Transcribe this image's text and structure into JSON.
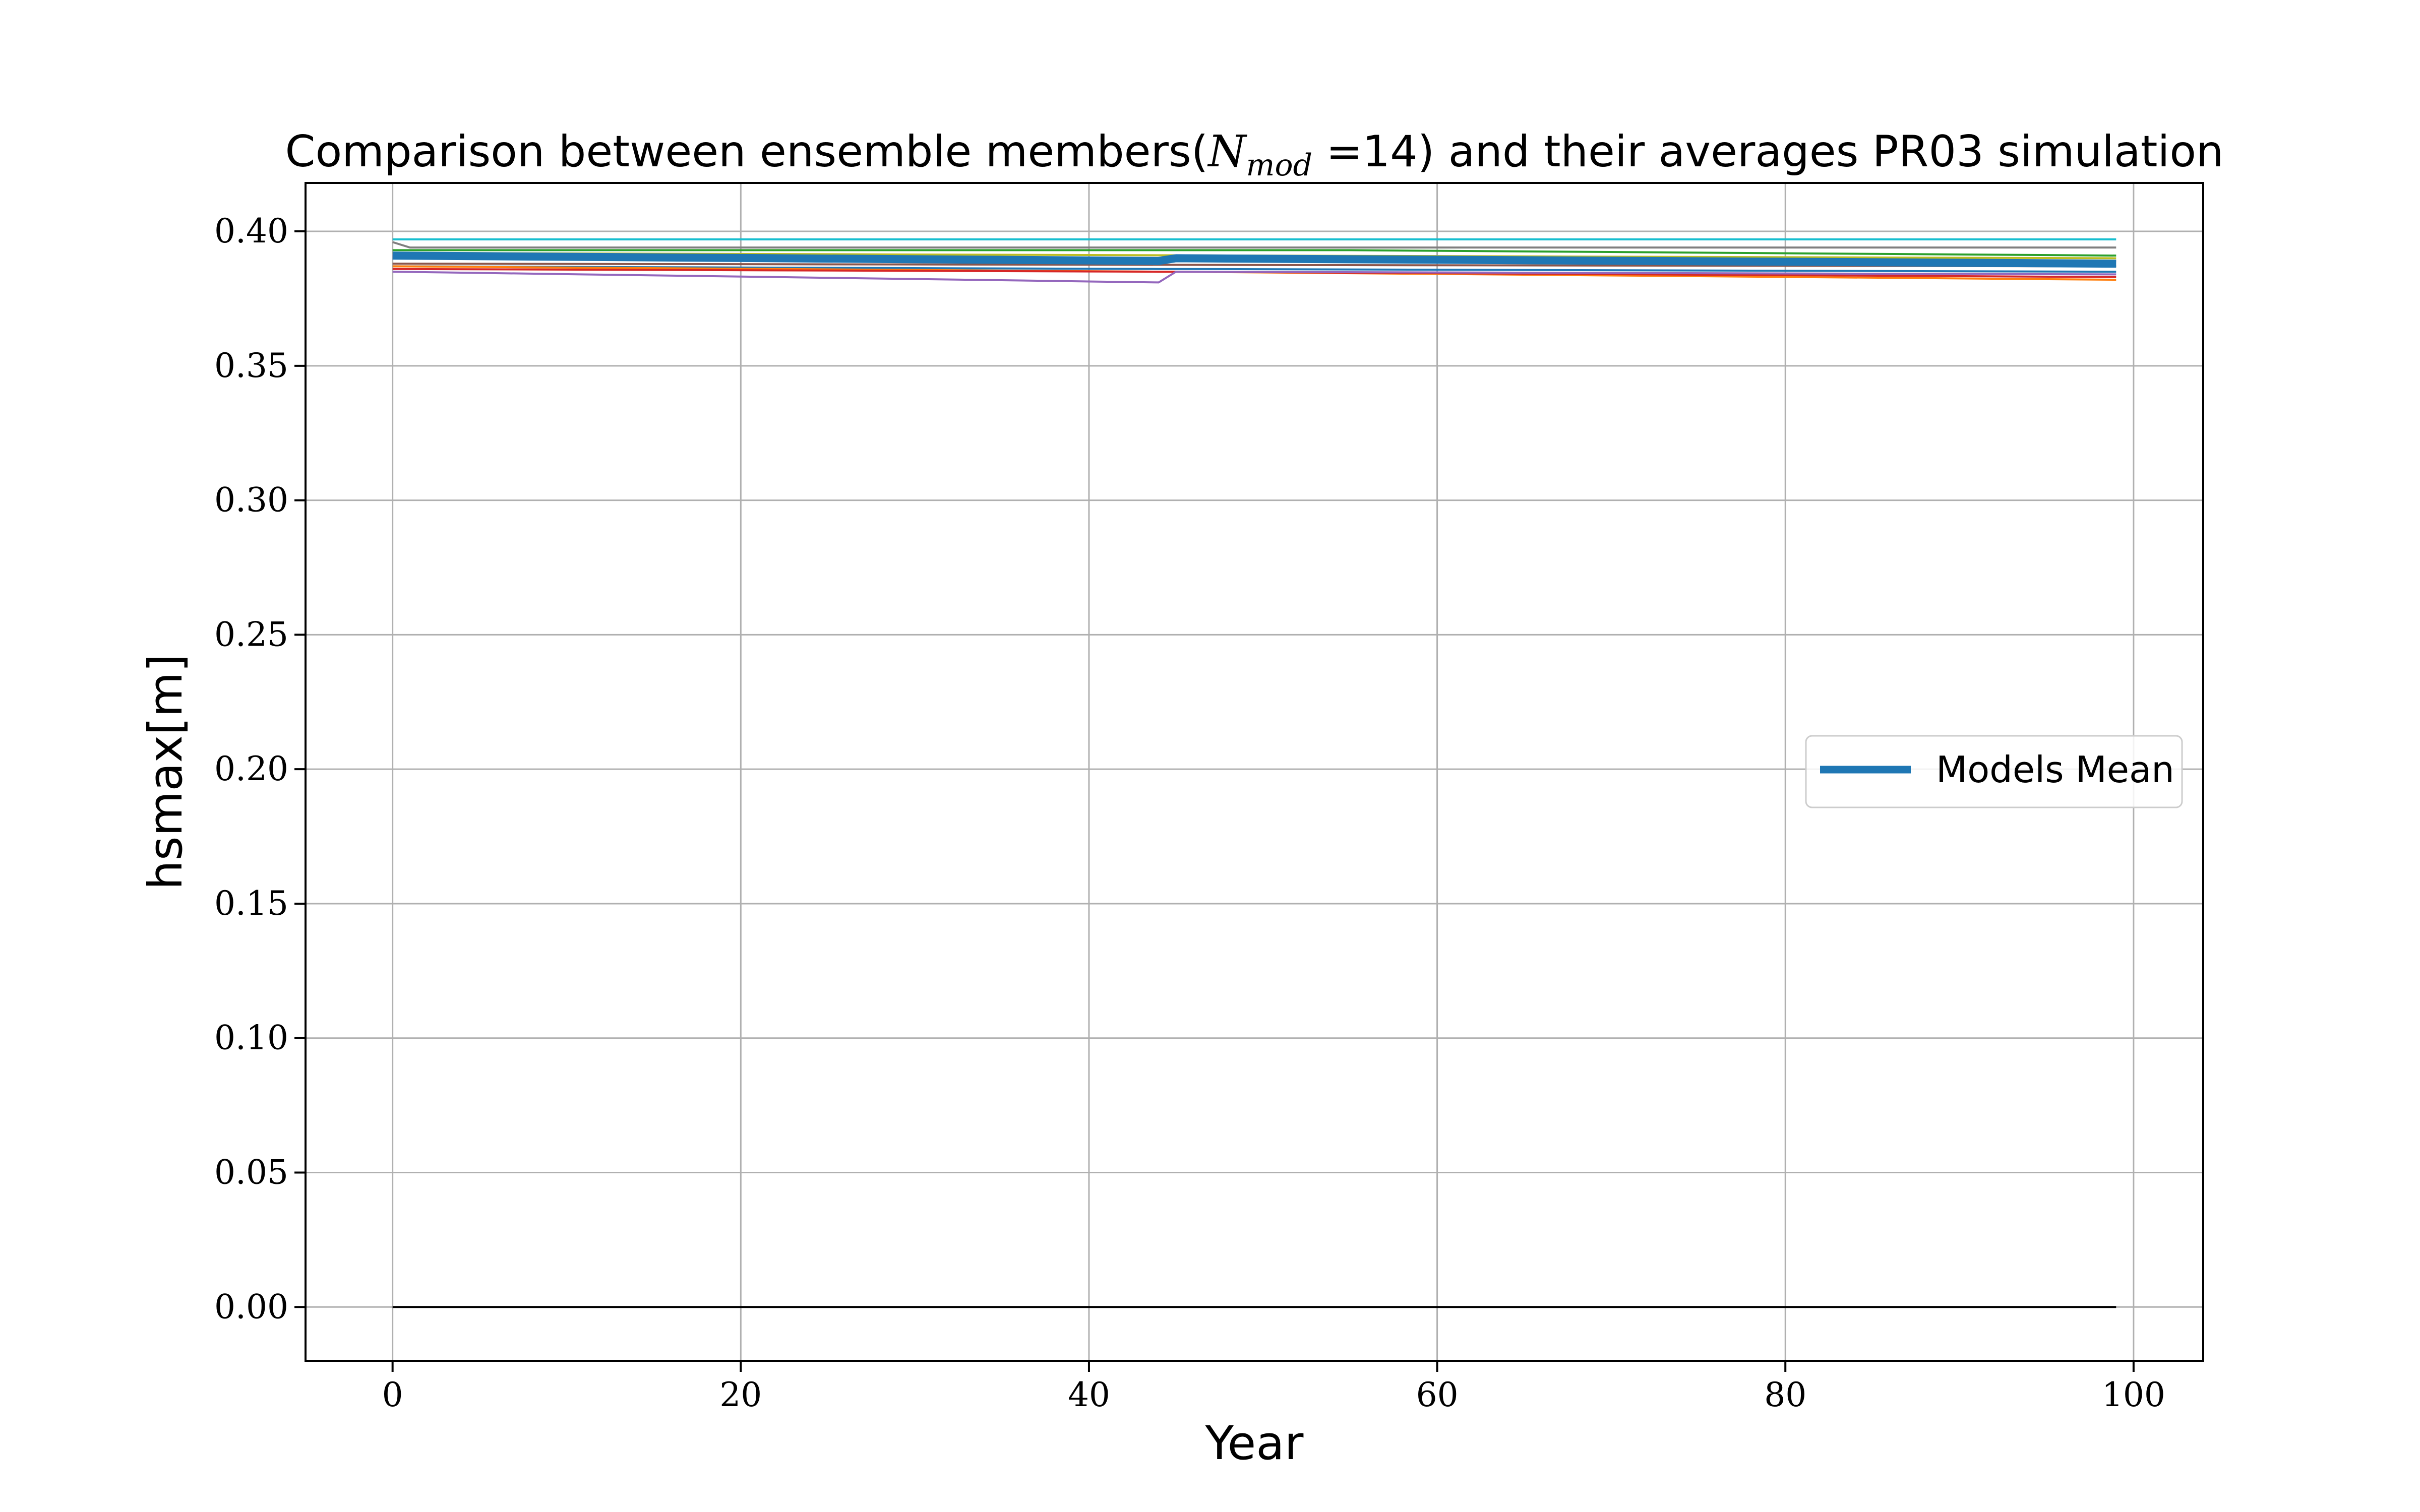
{
  "chart_data": {
    "type": "line",
    "title_prefix": "Comparison between ensemble members(",
    "title_math_base": "N",
    "title_math_sub": "mod",
    "title_suffix": " =14) and their averages PR03 simulation",
    "xlabel": "Year",
    "ylabel": "hsmax[m]",
    "xlim": [
      -5,
      104
    ],
    "ylim": [
      -0.02,
      0.418
    ],
    "xticks": [
      0,
      20,
      40,
      60,
      80,
      100
    ],
    "yticks": [
      0.0,
      0.05,
      0.1,
      0.15,
      0.2,
      0.25,
      0.3,
      0.35,
      0.4
    ],
    "ytick_labels": [
      "0.00",
      "0.05",
      "0.10",
      "0.15",
      "0.20",
      "0.25",
      "0.30",
      "0.35",
      "0.40"
    ],
    "xtick_labels": [
      "0",
      "20",
      "40",
      "60",
      "80",
      "100"
    ],
    "grid": true,
    "legend": {
      "position": "center-right",
      "entries": [
        "Models Mean"
      ]
    },
    "mean_color": "#1f77b4",
    "series": [
      {
        "color": "#17becf",
        "points": [
          [
            0,
            0.397
          ],
          [
            99,
            0.397
          ]
        ]
      },
      {
        "color": "#7f7f7f",
        "points": [
          [
            0,
            0.396
          ],
          [
            1,
            0.394
          ],
          [
            99,
            0.394
          ]
        ]
      },
      {
        "color": "#2ca02c",
        "points": [
          [
            0,
            0.393
          ],
          [
            55,
            0.393
          ],
          [
            99,
            0.391
          ]
        ]
      },
      {
        "color": "#bcbd22",
        "points": [
          [
            0,
            0.392
          ],
          [
            99,
            0.39
          ]
        ]
      },
      {
        "color": "#e377c2",
        "points": [
          [
            0,
            0.391
          ],
          [
            99,
            0.389
          ]
        ]
      },
      {
        "color": "#8c564b",
        "points": [
          [
            0,
            0.388
          ],
          [
            99,
            0.387
          ]
        ]
      },
      {
        "color": "#1f77b4",
        "points": [
          [
            0,
            0.387
          ],
          [
            44,
            0.386
          ],
          [
            45,
            0.386
          ],
          [
            99,
            0.385
          ]
        ]
      },
      {
        "color": "#ff7f0e",
        "points": [
          [
            0,
            0.387
          ],
          [
            44,
            0.385
          ],
          [
            45,
            0.385
          ],
          [
            99,
            0.382
          ]
        ]
      },
      {
        "color": "#d62728",
        "points": [
          [
            0,
            0.386
          ],
          [
            44,
            0.385
          ],
          [
            45,
            0.385
          ],
          [
            99,
            0.383
          ]
        ]
      },
      {
        "color": "#9467bd",
        "points": [
          [
            0,
            0.385
          ],
          [
            44,
            0.381
          ],
          [
            45,
            0.385
          ],
          [
            99,
            0.384
          ]
        ]
      },
      {
        "color": "#000000",
        "points": [
          [
            0,
            0.0
          ],
          [
            99,
            0.0
          ]
        ]
      }
    ],
    "mean": {
      "name": "Models Mean",
      "points": [
        [
          0,
          0.391
        ],
        [
          44,
          0.389
        ],
        [
          45,
          0.39
        ],
        [
          99,
          0.388
        ]
      ]
    }
  }
}
